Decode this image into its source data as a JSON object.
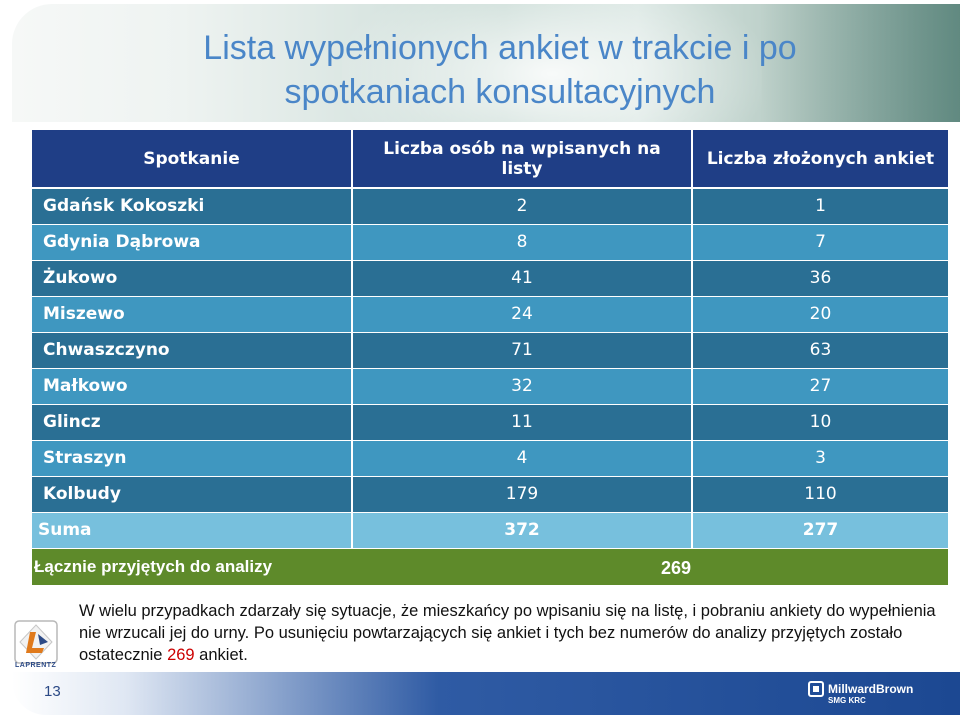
{
  "slide": {
    "title_line1": "Lista wypełnionych ankiet w trakcie i po",
    "title_line2": "spotkaniach konsultacyjnych"
  },
  "table": {
    "headers": [
      "Spotkanie",
      "Liczba osób na wpisanych na listy",
      "Liczba złożonych ankiet"
    ],
    "rows": [
      {
        "name": "Gdańsk Kokoszki",
        "listed": "2",
        "surveys": "1"
      },
      {
        "name": "Gdynia Dąbrowa",
        "listed": "8",
        "surveys": "7"
      },
      {
        "name": "Żukowo",
        "listed": "41",
        "surveys": "36"
      },
      {
        "name": "Miszewo",
        "listed": "24",
        "surveys": "20"
      },
      {
        "name": "Chwaszczyno",
        "listed": "71",
        "surveys": "63"
      },
      {
        "name": "Małkowo",
        "listed": "32",
        "surveys": "27"
      },
      {
        "name": "Glincz",
        "listed": "11",
        "surveys": "10"
      },
      {
        "name": "Straszyn",
        "listed": "4",
        "surveys": "3"
      },
      {
        "name": "Kolbudy",
        "listed": "179",
        "surveys": "110"
      }
    ],
    "sum": {
      "name": "Suma",
      "listed": "372",
      "surveys": "277"
    }
  },
  "total": {
    "label": "Łącznie przyjętych do analizy",
    "value": "269"
  },
  "note": {
    "before": "W wielu przypadkach zdarzały się sytuacje, że mieszkańcy po wpisaniu się na listę, i pobraniu ankiety do wypełnienia nie wrzucali jej do urny. Po usunięciu powtarzających się ankiet i tych bez numerów do analizy przyjętych zostało ostatecznie ",
    "highlight": "269",
    "after": " ankiet."
  },
  "footer": {
    "page_number": "13",
    "brand": "MillwardBrown",
    "brand_sub": "SMG KRC"
  },
  "logo_left": {
    "text": "LAPRENTZ"
  }
}
